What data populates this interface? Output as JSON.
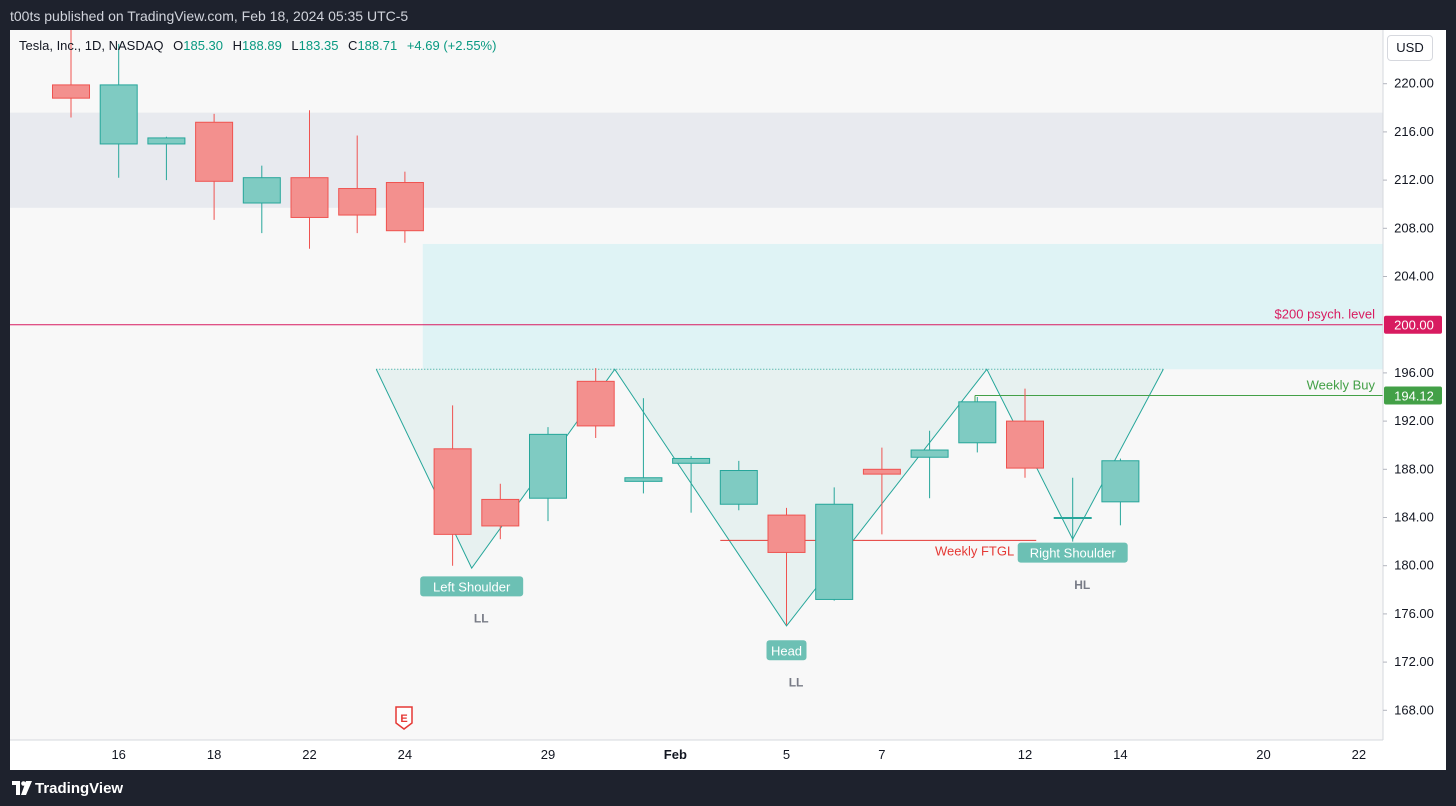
{
  "header": {
    "published_text": "t00ts published on TradingView.com, Feb 18, 2024 05:35 UTC-5"
  },
  "legend": {
    "symbol": "Tesla, Inc., 1D, NASDAQ",
    "o_label": "O",
    "o_value": "185.30",
    "h_label": "H",
    "h_value": "188.89",
    "l_label": "L",
    "l_value": "183.35",
    "c_label": "C",
    "c_value": "188.71",
    "change": "+4.69 (+2.55%)"
  },
  "currency_button": "USD",
  "footer": {
    "brand": "TradingView"
  },
  "colors": {
    "up": "#26a69a",
    "down": "#ef5350",
    "up_fill": "#7fcbc2",
    "down_fill": "#f3908e",
    "psych_line": "#d81b60",
    "weekly_buy": "#43a047",
    "ftgl": "#e53935"
  },
  "chart_data": {
    "type": "candlestick",
    "symbol": "TSLA",
    "timeframe": "1D",
    "ylim": [
      165.5,
      224.5
    ],
    "y_ticks": [
      "220.00",
      "216.00",
      "212.00",
      "208.00",
      "204.00",
      "200.00",
      "196.00",
      "192.00",
      "188.00",
      "184.00",
      "180.00",
      "176.00",
      "172.00",
      "168.00"
    ],
    "x_ticks": [
      "16",
      "18",
      "22",
      "24",
      "29",
      "Feb",
      "5",
      "7",
      "12",
      "14",
      "20",
      "22"
    ],
    "candles": [
      {
        "date": "Jan 12",
        "o": 219.9,
        "h": 225.5,
        "l": 217.2,
        "c": 218.8
      },
      {
        "date": "Jan 16",
        "o": 215.0,
        "h": 223.3,
        "l": 212.2,
        "c": 219.9
      },
      {
        "date": "Jan 17",
        "o": 215.0,
        "h": 215.6,
        "l": 212.0,
        "c": 215.5
      },
      {
        "date": "Jan 18",
        "o": 216.8,
        "h": 217.5,
        "l": 208.7,
        "c": 211.9
      },
      {
        "date": "Jan 19",
        "o": 210.1,
        "h": 213.2,
        "l": 207.6,
        "c": 212.2
      },
      {
        "date": "Jan 22",
        "o": 212.2,
        "h": 217.8,
        "l": 206.3,
        "c": 208.9
      },
      {
        "date": "Jan 23",
        "o": 211.3,
        "h": 215.7,
        "l": 207.6,
        "c": 209.1
      },
      {
        "date": "Jan 24",
        "o": 211.8,
        "h": 212.7,
        "l": 206.8,
        "c": 207.8
      },
      {
        "date": "Jan 25",
        "o": 189.7,
        "h": 193.3,
        "l": 180.0,
        "c": 182.6
      },
      {
        "date": "Jan 26",
        "o": 185.5,
        "h": 186.8,
        "l": 182.2,
        "c": 183.3
      },
      {
        "date": "Jan 29",
        "o": 185.6,
        "h": 191.5,
        "l": 183.7,
        "c": 190.9
      },
      {
        "date": "Jan 30",
        "o": 195.3,
        "h": 196.4,
        "l": 190.6,
        "c": 191.6
      },
      {
        "date": "Jan 31",
        "o": 187.0,
        "h": 193.9,
        "l": 186.0,
        "c": 187.3
      },
      {
        "date": "Feb 1",
        "o": 188.5,
        "h": 189.1,
        "l": 184.4,
        "c": 188.9
      },
      {
        "date": "Feb 2",
        "o": 185.1,
        "h": 188.7,
        "l": 184.6,
        "c": 187.9
      },
      {
        "date": "Feb 5",
        "o": 184.2,
        "h": 184.8,
        "l": 175.1,
        "c": 181.1
      },
      {
        "date": "Feb 6",
        "o": 177.2,
        "h": 186.5,
        "l": 177.1,
        "c": 185.1
      },
      {
        "date": "Feb 7",
        "o": 188.0,
        "h": 189.8,
        "l": 182.6,
        "c": 187.6
      },
      {
        "date": "Feb 8",
        "o": 189.0,
        "h": 191.2,
        "l": 185.6,
        "c": 189.6
      },
      {
        "date": "Feb 9",
        "o": 190.2,
        "h": 194.0,
        "l": 189.4,
        "c": 193.6
      },
      {
        "date": "Feb 12",
        "o": 192.0,
        "h": 194.7,
        "l": 187.3,
        "c": 188.1
      },
      {
        "date": "Feb 13",
        "o": 184.0,
        "h": 187.3,
        "l": 182.0,
        "c": 184.0
      },
      {
        "date": "Feb 14",
        "o": 185.3,
        "h": 188.89,
        "l": 183.35,
        "c": 188.71
      }
    ],
    "zones": [
      {
        "from_index": -1,
        "to_index": 28,
        "y_top": 217.6,
        "y_bottom": 209.7,
        "color": "#e8eaef"
      },
      {
        "from_index": 7,
        "to_index": 28,
        "y_top": 206.7,
        "y_bottom": 196.3,
        "color": "#dff3f5"
      }
    ],
    "horizontal_lines": [
      {
        "price": 200.0,
        "label": "$200 psych. level",
        "badge": "200.00",
        "color": "#d81b60"
      },
      {
        "price": 194.12,
        "label": "Weekly Buy",
        "badge": "194.12",
        "color": "#43a047"
      }
    ],
    "ftgl": {
      "price": 182.1,
      "from_index": 14,
      "to_index": 19.9,
      "label": "Weekly FTGL",
      "color": "#e53935"
    },
    "pattern": {
      "neckline": 196.3,
      "points": [
        {
          "index": 6.4,
          "price": 196.3
        },
        {
          "index": 8.4,
          "price": 179.8
        },
        {
          "index": 11.4,
          "price": 196.3
        },
        {
          "index": 15.0,
          "price": 175.0
        },
        {
          "index": 19.2,
          "price": 196.3
        },
        {
          "index": 21.0,
          "price": 182.2
        },
        {
          "index": 22.9,
          "price": 196.3
        }
      ]
    },
    "annotations": [
      {
        "text": "Left Shoulder",
        "index": 8.4,
        "price": 178.2,
        "boxed": true
      },
      {
        "text": "LL",
        "index": 8.6,
        "price": 175.6,
        "boxed": false
      },
      {
        "text": "Head",
        "index": 15.0,
        "price": 172.9,
        "boxed": true
      },
      {
        "text": "LL",
        "index": 15.2,
        "price": 170.3,
        "boxed": false
      },
      {
        "text": "Right Shoulder",
        "index": 21.0,
        "price": 181.0,
        "boxed": true
      },
      {
        "text": "HL",
        "index": 21.2,
        "price": 178.4,
        "boxed": false
      }
    ],
    "earnings_marker": {
      "label": "E",
      "date": "Jan 24"
    }
  }
}
